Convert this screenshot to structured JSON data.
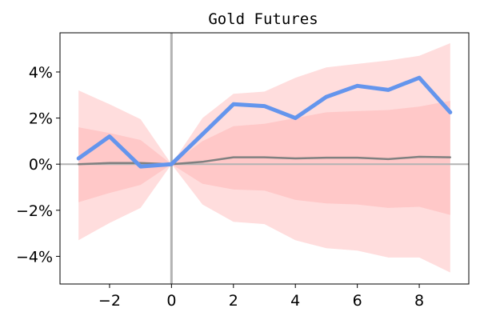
{
  "chart_data": {
    "type": "line",
    "title": "Gold Futures",
    "xlabel": "",
    "ylabel": "",
    "x": [
      -3,
      -2,
      -1,
      0,
      1,
      2,
      3,
      4,
      5,
      6,
      7,
      8,
      9
    ],
    "xlim": [
      -3.6,
      9.6
    ],
    "ylim": [
      -5.2,
      5.7
    ],
    "x_ticks": [
      -2,
      0,
      2,
      4,
      6,
      8
    ],
    "x_tick_labels": [
      "−2",
      "0",
      "2",
      "4",
      "6",
      "8"
    ],
    "y_ticks": [
      -4,
      -2,
      0,
      2,
      4
    ],
    "y_tick_labels": [
      "−4%",
      "−2%",
      "0%",
      "2%",
      "4%"
    ],
    "grid": false,
    "reference_lines": {
      "x": 0,
      "y": 0,
      "color": "#b3b3b3"
    },
    "series": [
      {
        "role": "band_outer",
        "upper": [
          3.2,
          2.6,
          1.95,
          0.0,
          2.0,
          3.05,
          3.15,
          3.75,
          4.2,
          4.35,
          4.5,
          4.7,
          5.25
        ],
        "lower": [
          -3.3,
          -2.55,
          -1.9,
          0.0,
          -1.75,
          -2.5,
          -2.6,
          -3.3,
          -3.65,
          -3.75,
          -4.05,
          -4.05,
          -4.7
        ],
        "color": "#ffdddd"
      },
      {
        "role": "band_inner",
        "upper": [
          1.6,
          1.35,
          1.05,
          0.0,
          1.0,
          1.65,
          1.75,
          2.0,
          2.25,
          2.3,
          2.35,
          2.5,
          2.75
        ],
        "lower": [
          -1.65,
          -1.25,
          -0.9,
          0.0,
          -0.85,
          -1.1,
          -1.15,
          -1.55,
          -1.7,
          -1.75,
          -1.9,
          -1.85,
          -2.2
        ],
        "color": "#ffc8c8"
      },
      {
        "role": "median",
        "values": [
          0.0,
          0.05,
          0.05,
          0.0,
          0.1,
          0.3,
          0.3,
          0.25,
          0.28,
          0.28,
          0.22,
          0.32,
          0.3
        ],
        "color": "#808080"
      },
      {
        "role": "actual",
        "values": [
          0.25,
          1.2,
          -0.1,
          0.0,
          1.3,
          2.6,
          2.52,
          2.0,
          2.92,
          3.4,
          3.22,
          3.75,
          2.25
        ],
        "color": "#6495ed"
      }
    ]
  }
}
